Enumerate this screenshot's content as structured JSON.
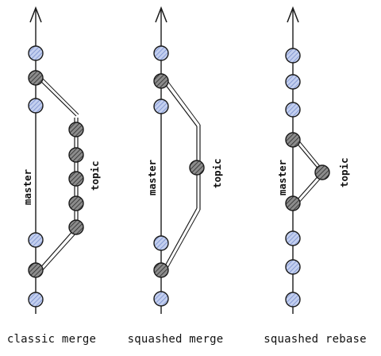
{
  "diagrams": [
    {
      "caption": "classic merge",
      "master_label": "master",
      "topic_label": "topic",
      "master_commits": [
        "blue",
        "dark",
        "blue",
        "blue",
        "dark",
        "blue"
      ],
      "topic_commits": 5
    },
    {
      "caption": "squashed merge",
      "master_label": "master",
      "topic_label": "topic",
      "master_commits": [
        "blue",
        "dark",
        "blue",
        "blue",
        "dark",
        "blue"
      ],
      "topic_commits": 1
    },
    {
      "caption": "squashed rebase",
      "master_label": "master",
      "topic_label": "topic",
      "master_commits": [
        "blue",
        "blue",
        "blue",
        "dark",
        "dark",
        "blue",
        "blue",
        "blue"
      ],
      "topic_commits": 1
    }
  ],
  "colors": {
    "stroke": "#1a1a1a",
    "commit_blue_fill": "#c3cfef",
    "commit_blue_hatch": "#6f86c9",
    "commit_dark_fill": "#8c8c8c",
    "commit_dark_hatch": "#2a2a2a"
  }
}
